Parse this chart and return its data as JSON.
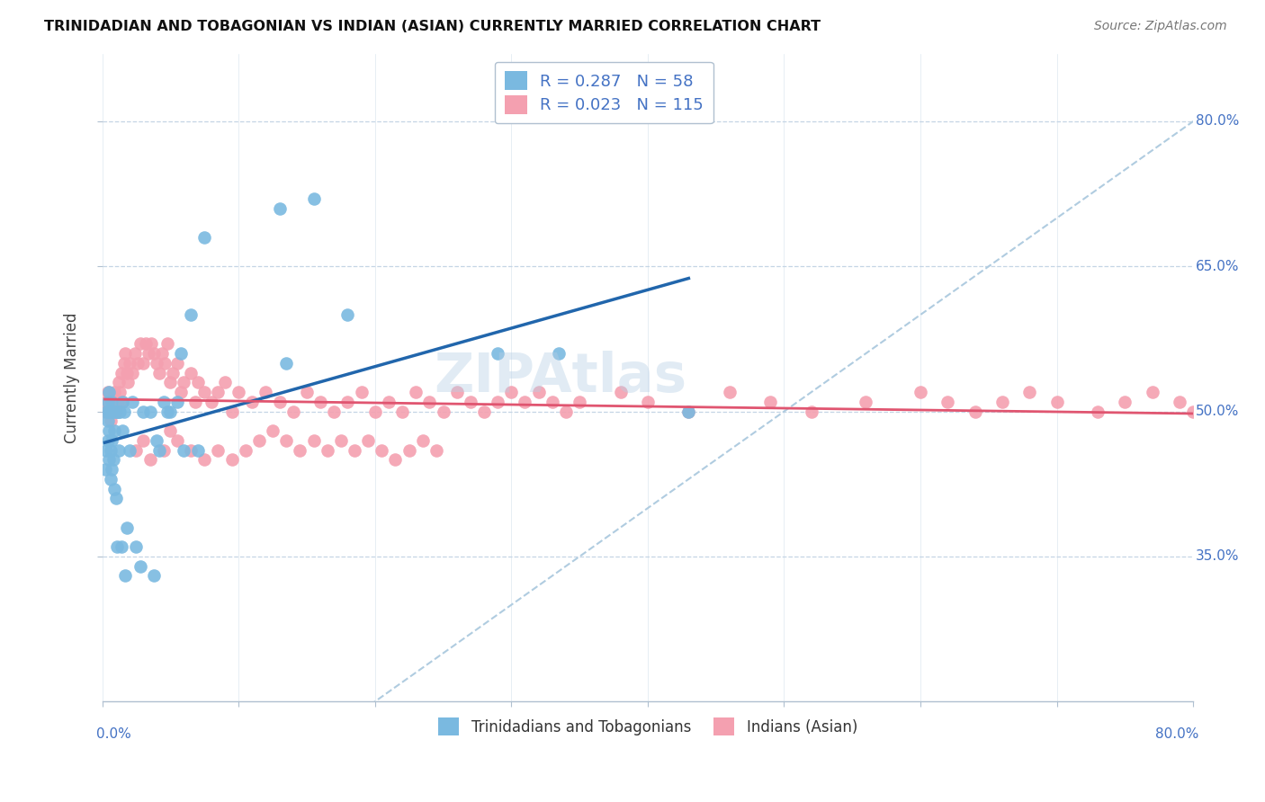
{
  "title": "TRINIDADIAN AND TOBAGONIAN VS INDIAN (ASIAN) CURRENTLY MARRIED CORRELATION CHART",
  "source": "Source: ZipAtlas.com",
  "ylabel": "Currently Married",
  "legend_R1": "0.287",
  "legend_N1": "58",
  "legend_R2": "0.023",
  "legend_N2": "115",
  "legend_label1": "Trinidadians and Tobagonians",
  "legend_label2": "Indians (Asian)",
  "color_blue": "#7ab9e0",
  "color_pink": "#f4a0b0",
  "color_line_blue": "#2166ac",
  "color_line_pink": "#e05570",
  "color_diag": "#b0cce0",
  "color_text_blue": "#4472c4",
  "x_min": 0.0,
  "x_max": 0.8,
  "y_min": 0.2,
  "y_max": 0.87,
  "yticks": [
    0.35,
    0.5,
    0.65,
    0.8
  ],
  "ytick_labels": [
    "35.0%",
    "50.0%",
    "65.0%",
    "80.0%"
  ],
  "xtick_labels_ends": [
    "0.0%",
    "80.0%"
  ],
  "watermark": "ZIPAtlas",
  "blue_x": [
    0.002,
    0.003,
    0.003,
    0.004,
    0.004,
    0.004,
    0.005,
    0.005,
    0.005,
    0.005,
    0.006,
    0.006,
    0.006,
    0.007,
    0.007,
    0.007,
    0.008,
    0.008,
    0.009,
    0.009,
    0.01,
    0.01,
    0.011,
    0.011,
    0.012,
    0.012,
    0.013,
    0.014,
    0.015,
    0.015,
    0.016,
    0.017,
    0.018,
    0.02,
    0.022,
    0.025,
    0.028,
    0.03,
    0.035,
    0.038,
    0.04,
    0.042,
    0.045,
    0.048,
    0.05,
    0.055,
    0.058,
    0.06,
    0.065,
    0.07,
    0.075,
    0.13,
    0.135,
    0.155,
    0.18,
    0.29,
    0.335,
    0.43
  ],
  "blue_y": [
    0.44,
    0.46,
    0.5,
    0.47,
    0.49,
    0.51,
    0.45,
    0.48,
    0.5,
    0.52,
    0.43,
    0.46,
    0.5,
    0.44,
    0.47,
    0.51,
    0.45,
    0.5,
    0.42,
    0.48,
    0.41,
    0.5,
    0.36,
    0.5,
    0.46,
    0.5,
    0.5,
    0.36,
    0.48,
    0.51,
    0.5,
    0.33,
    0.38,
    0.46,
    0.51,
    0.36,
    0.34,
    0.5,
    0.5,
    0.33,
    0.47,
    0.46,
    0.51,
    0.5,
    0.5,
    0.51,
    0.56,
    0.46,
    0.6,
    0.46,
    0.68,
    0.71,
    0.55,
    0.72,
    0.6,
    0.56,
    0.56,
    0.5
  ],
  "pink_x": [
    0.002,
    0.003,
    0.004,
    0.005,
    0.006,
    0.007,
    0.008,
    0.009,
    0.01,
    0.011,
    0.012,
    0.013,
    0.014,
    0.015,
    0.016,
    0.017,
    0.018,
    0.019,
    0.02,
    0.022,
    0.024,
    0.026,
    0.028,
    0.03,
    0.032,
    0.034,
    0.036,
    0.038,
    0.04,
    0.042,
    0.044,
    0.046,
    0.048,
    0.05,
    0.052,
    0.055,
    0.058,
    0.06,
    0.065,
    0.068,
    0.07,
    0.075,
    0.08,
    0.085,
    0.09,
    0.095,
    0.1,
    0.11,
    0.12,
    0.13,
    0.14,
    0.15,
    0.16,
    0.17,
    0.18,
    0.19,
    0.2,
    0.21,
    0.22,
    0.23,
    0.24,
    0.25,
    0.26,
    0.27,
    0.28,
    0.29,
    0.3,
    0.31,
    0.32,
    0.33,
    0.34,
    0.35,
    0.38,
    0.4,
    0.43,
    0.46,
    0.49,
    0.52,
    0.56,
    0.6,
    0.62,
    0.64,
    0.66,
    0.68,
    0.7,
    0.73,
    0.75,
    0.77,
    0.79,
    0.8,
    0.05,
    0.03,
    0.025,
    0.035,
    0.045,
    0.055,
    0.065,
    0.075,
    0.085,
    0.095,
    0.105,
    0.115,
    0.125,
    0.135,
    0.145,
    0.155,
    0.165,
    0.175,
    0.185,
    0.195,
    0.205,
    0.215,
    0.225,
    0.235,
    0.245
  ],
  "pink_y": [
    0.5,
    0.51,
    0.52,
    0.5,
    0.49,
    0.51,
    0.5,
    0.52,
    0.5,
    0.51,
    0.53,
    0.52,
    0.54,
    0.51,
    0.55,
    0.56,
    0.54,
    0.53,
    0.55,
    0.54,
    0.56,
    0.55,
    0.57,
    0.55,
    0.57,
    0.56,
    0.57,
    0.56,
    0.55,
    0.54,
    0.56,
    0.55,
    0.57,
    0.53,
    0.54,
    0.55,
    0.52,
    0.53,
    0.54,
    0.51,
    0.53,
    0.52,
    0.51,
    0.52,
    0.53,
    0.5,
    0.52,
    0.51,
    0.52,
    0.51,
    0.5,
    0.52,
    0.51,
    0.5,
    0.51,
    0.52,
    0.5,
    0.51,
    0.5,
    0.52,
    0.51,
    0.5,
    0.52,
    0.51,
    0.5,
    0.51,
    0.52,
    0.51,
    0.52,
    0.51,
    0.5,
    0.51,
    0.52,
    0.51,
    0.5,
    0.52,
    0.51,
    0.5,
    0.51,
    0.52,
    0.51,
    0.5,
    0.51,
    0.52,
    0.51,
    0.5,
    0.51,
    0.52,
    0.51,
    0.5,
    0.48,
    0.47,
    0.46,
    0.45,
    0.46,
    0.47,
    0.46,
    0.45,
    0.46,
    0.45,
    0.46,
    0.47,
    0.48,
    0.47,
    0.46,
    0.47,
    0.46,
    0.47,
    0.46,
    0.47,
    0.46,
    0.45,
    0.46,
    0.47,
    0.46
  ]
}
